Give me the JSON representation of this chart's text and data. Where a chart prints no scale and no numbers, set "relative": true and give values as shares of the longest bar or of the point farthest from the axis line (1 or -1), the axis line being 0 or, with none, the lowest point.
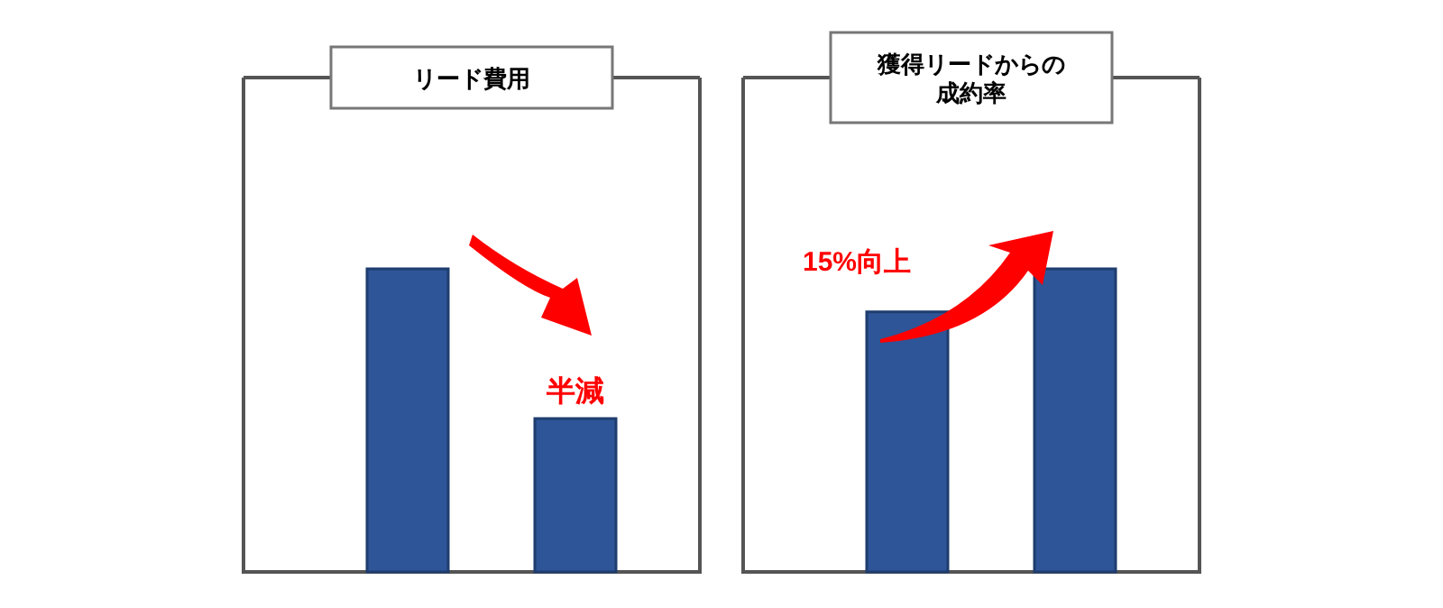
{
  "chart_data": [
    {
      "type": "bar",
      "title": "リード費用",
      "categories": [
        null,
        null
      ],
      "values": [
        1,
        0.506
      ],
      "color": "#2e5597",
      "relative": true,
      "annotations": [
        "半減"
      ]
    },
    {
      "type": "bar",
      "title": "獲得リードからの成約率",
      "categories": [
        null,
        null
      ],
      "values": [
        0.858,
        1
      ],
      "color": "#2e5597",
      "relative": true,
      "annotations": [
        "15%向上"
      ]
    }
  ]
}
